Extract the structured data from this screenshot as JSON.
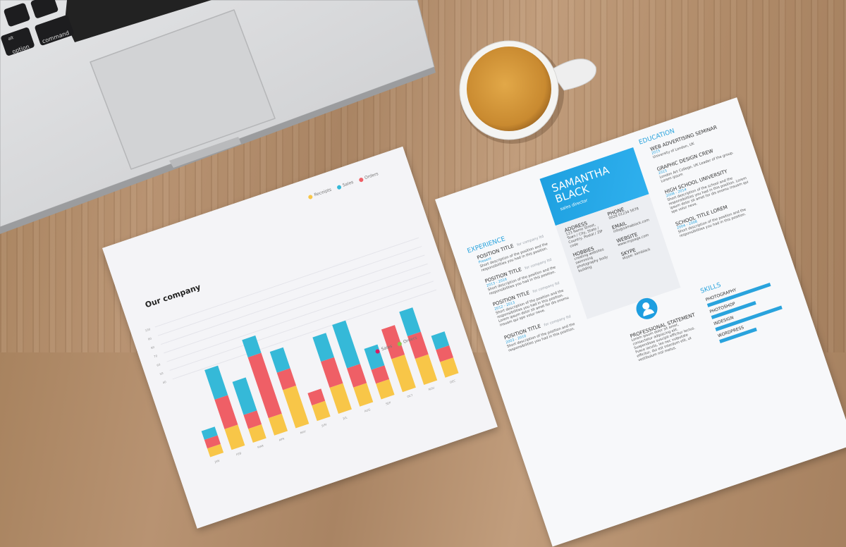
{
  "laptop": {
    "keys": [
      "option",
      "command",
      "alt"
    ]
  },
  "chart_data": {
    "type": "bar",
    "title": "Our company",
    "stacked": true,
    "categories": [
      "JAN",
      "FEB",
      "MAR",
      "APR",
      "MAY",
      "JUN",
      "JUL",
      "AUG",
      "SEP",
      "OCT",
      "NOV",
      "DEC"
    ],
    "series": [
      {
        "name": "Receipts",
        "color": "#f8c648",
        "values": [
          5,
          12,
          8,
          10,
          22,
          9,
          15,
          11,
          9,
          19,
          15,
          9
        ]
      },
      {
        "name": "Orders",
        "color": "#ef5f66",
        "values": [
          5,
          17,
          8,
          35,
          10,
          7,
          15,
          11,
          8,
          17,
          13,
          7
        ]
      },
      {
        "name": "Sales",
        "color": "#35b9d8",
        "values": [
          5,
          17,
          19,
          10,
          12,
          0,
          14,
          25,
          12,
          0,
          14,
          8
        ]
      }
    ],
    "yticks": [
      40,
      50,
      60,
      70,
      80,
      90,
      100
    ],
    "ylim": [
      0,
      100
    ],
    "legend": "top-right",
    "second_legend": [
      {
        "name": "Sales",
        "color": "#d81b60"
      },
      {
        "name": "Orders",
        "color": "#8bc34a"
      }
    ]
  },
  "resume": {
    "name_line1": "SAMANTHA",
    "name_line2": "BLACK",
    "role": "sales director",
    "experience_heading": "EXPERIENCE",
    "experience": [
      {
        "title": "POSITION TITLE",
        "company": "for company ltd",
        "dates": "Present",
        "desc": "Short description of the position and the responsibilities you had in this position."
      },
      {
        "title": "POSITION TITLE",
        "company": "for company ltd",
        "dates": "2013 - 2016",
        "desc": "Short description of the position and the responsibilities you had in this position."
      },
      {
        "title": "POSITION TITLE",
        "company": "for company ltd",
        "dates": "2012 - 2013",
        "desc": "Short description of the position and the responsibilities you had in this position. Lorem ipsum dolor sit amet for dis onomu insuam qui spe volur neve."
      },
      {
        "title": "POSITION TITLE",
        "company": "for company ltd",
        "dates": "2003 - 2010",
        "desc": "Short description of the position and the responsibilities you had in this position."
      }
    ],
    "address_heading": "ADDRESS",
    "address": "123 Name Street, Town / City, State / Country, Postal / ZIP code",
    "hobbies_heading": "HOBBIES",
    "hobbies": "creating websites swimming photography body building",
    "phone_heading": "PHONE",
    "phone": "0028 01234 5678",
    "email_heading": "EMAIL",
    "email": "info@samablack.com",
    "website_heading": "WEBSITE",
    "website": "www.mypage.com",
    "skype_heading": "SKYPE",
    "skype": "skype: samblack",
    "education_heading": "EDUCATION",
    "education": [
      {
        "title": "WEB ADVERTISING SEMINAR",
        "dates": "2015",
        "desc": "University of London, UK"
      },
      {
        "title": "GRAPHIC DESIGN CREW",
        "dates": "2015",
        "desc": "London Art College, UK Leader of the group. Lorem ipsum"
      },
      {
        "title": "HIGH SCHOOL UNIVERSITY",
        "dates": "2008 - 2014",
        "desc": "Short description of the school and the responsibilities you had in this position. Lorem ipsum dolor sit amet for dis onomu insuam qui spe volur neve."
      },
      {
        "title": "SCHOOL TITLE LOREM",
        "dates": "2004 - 2008",
        "desc": "Short description of the position and the responsibilities you had in this position."
      }
    ],
    "statement_heading": "PROFESSIONAL STATEMENT",
    "statement": "Lorem ipsum dolor sit amet, consectetur adipiscing elit. Suspendisse suscipit efficitur lectus. Fusce iaculis, leo nec vulputate efficitur, dui est interdum elit, ut vestibulum nisl metus.",
    "skills_heading": "SKILLS",
    "skills": [
      {
        "name": "PHOTOGRAPHY",
        "level": 0.85
      },
      {
        "name": "PHOTOSHOP",
        "level": 0.6
      },
      {
        "name": "INDESIGN",
        "level": 0.9
      },
      {
        "name": "WORDPRESS",
        "level": 0.5
      }
    ],
    "accent": "#29a3dd"
  }
}
